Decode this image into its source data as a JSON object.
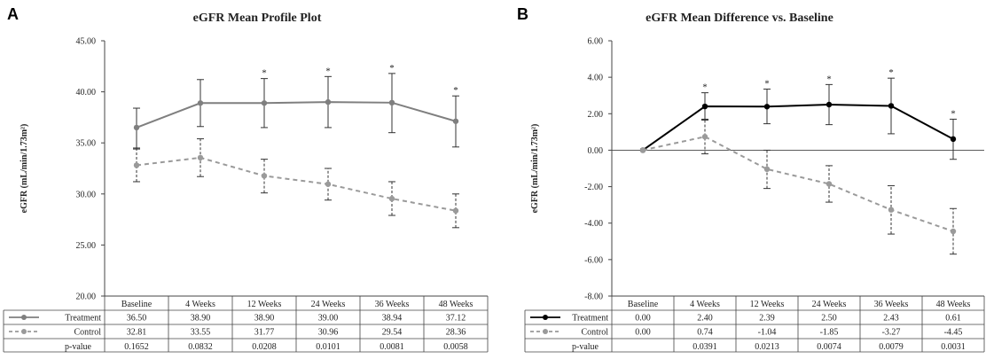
{
  "colors": {
    "treatment_a": "#7f7f7f",
    "treatment_b": "#000000",
    "control": "#9a9a9a",
    "grid": "#444444"
  },
  "chart_data": [
    {
      "panel": "A",
      "type": "line",
      "title": "eGFR Mean Profile Plot",
      "ylabel": "eGFR  (mL/min/1.73m²)",
      "ylim": [
        20,
        45
      ],
      "yticks": [
        "20.00",
        "25.00",
        "30.00",
        "35.00",
        "40.00",
        "45.00"
      ],
      "categories": [
        "Baseline",
        "4 Weeks",
        "12 Weeks",
        "24 Weeks",
        "36 Weeks",
        "48 Weeks"
      ],
      "series": [
        {
          "name": "Treatment",
          "style": "solid",
          "values": [
            36.5,
            38.9,
            38.9,
            39.0,
            38.94,
            37.12
          ],
          "error_low": [
            34.4,
            36.6,
            36.5,
            36.5,
            36.0,
            34.6
          ],
          "error_high": [
            38.4,
            41.2,
            41.3,
            41.5,
            41.8,
            39.6
          ],
          "labels": [
            "36.50",
            "38.90",
            "38.90",
            "39.00",
            "38.94",
            "37.12"
          ]
        },
        {
          "name": "Control",
          "style": "dashed",
          "values": [
            32.81,
            33.55,
            31.77,
            30.96,
            29.54,
            28.36
          ],
          "error_low": [
            31.2,
            31.7,
            30.1,
            29.4,
            27.9,
            26.7
          ],
          "error_high": [
            34.5,
            35.4,
            33.4,
            32.5,
            31.2,
            30.0
          ],
          "labels": [
            "32.81",
            "33.55",
            "31.77",
            "30.96",
            "29.54",
            "28.36"
          ]
        }
      ],
      "significance": [
        false,
        false,
        true,
        true,
        true,
        true
      ],
      "star_symbol": "*",
      "pvalue_label": "p-value",
      "pvalues": [
        "0.1652",
        "0.0832",
        "0.0208",
        "0.0101",
        "0.0081",
        "0.0058"
      ]
    },
    {
      "panel": "B",
      "type": "line",
      "title": "eGFR Mean Difference vs. Baseline",
      "ylabel": "eGFR  (mL/min/1.73m²)",
      "ylim": [
        -8,
        6
      ],
      "yticks": [
        "-8.00",
        "-6.00",
        "-4.00",
        "-2.00",
        "0.00",
        "2.00",
        "4.00",
        "6.00"
      ],
      "categories": [
        "Baseline",
        "4 Weeks",
        "12 Weeks",
        "24 Weeks",
        "36 Weeks",
        "48 Weeks"
      ],
      "series": [
        {
          "name": "Treatment",
          "style": "solid",
          "values": [
            0.0,
            2.4,
            2.39,
            2.5,
            2.43,
            0.61
          ],
          "error_low": [
            null,
            1.65,
            1.45,
            1.4,
            0.9,
            -0.5
          ],
          "error_high": [
            null,
            3.15,
            3.35,
            3.6,
            3.95,
            1.7
          ],
          "labels": [
            "0.00",
            "2.40",
            "2.39",
            "2.50",
            "2.43",
            "0.61"
          ]
        },
        {
          "name": "Control",
          "style": "dashed",
          "values": [
            0.0,
            0.74,
            -1.04,
            -1.85,
            -3.27,
            -4.45
          ],
          "error_low": [
            null,
            -0.2,
            -2.1,
            -2.85,
            -4.6,
            -5.7
          ],
          "error_high": [
            null,
            1.7,
            0.0,
            -0.85,
            -1.95,
            -3.2
          ],
          "labels": [
            "0.00",
            "0.74",
            "-1.04",
            "-1.85",
            "-3.27",
            "-4.45"
          ]
        }
      ],
      "significance": [
        false,
        true,
        true,
        true,
        true,
        true
      ],
      "star_symbol": "*",
      "pvalue_label": "p-value",
      "pvalues": [
        "",
        "0.0391",
        "0.0213",
        "0.0074",
        "0.0079",
        "0.0031"
      ]
    }
  ]
}
